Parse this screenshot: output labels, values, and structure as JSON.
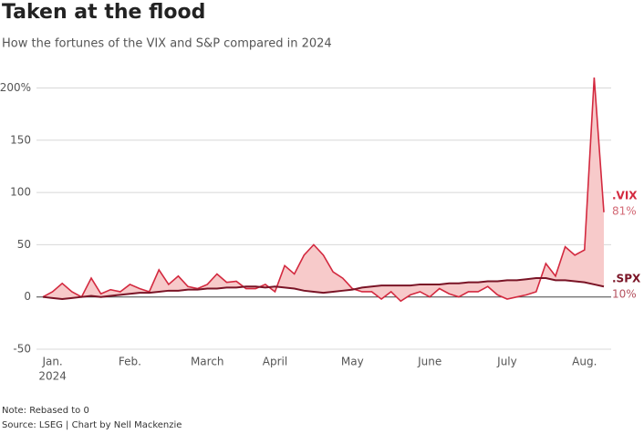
{
  "chart_data": {
    "type": "line",
    "title": "Taken at the flood",
    "subtitle": "How the fortunes of the VIX and S&P compared in 2024",
    "note": "Note: Rebased to 0",
    "source": "Source: LSEG | Chart by Nell Mackenzie",
    "x_year_label": "2024",
    "categories": [
      null,
      "Jan.",
      null,
      null,
      null,
      null,
      null,
      null,
      null,
      "Feb.",
      null,
      null,
      null,
      null,
      null,
      null,
      null,
      "March",
      null,
      null,
      null,
      null,
      null,
      null,
      "April",
      null,
      null,
      null,
      null,
      null,
      null,
      null,
      "May",
      null,
      null,
      null,
      null,
      null,
      null,
      null,
      "June",
      null,
      null,
      null,
      null,
      null,
      null,
      null,
      "July",
      null,
      null,
      null,
      null,
      null,
      null,
      null,
      "Aug.",
      null,
      null
    ],
    "series": [
      {
        "name": ".VIX",
        "color": "#d3293f",
        "end_label": "81%",
        "values": [
          0,
          5,
          13,
          5,
          0,
          18,
          3,
          7,
          5,
          12,
          8,
          5,
          26,
          12,
          20,
          10,
          8,
          12,
          22,
          14,
          15,
          8,
          8,
          12,
          5,
          30,
          22,
          40,
          50,
          40,
          24,
          18,
          8,
          5,
          5,
          -2,
          5,
          -4,
          2,
          5,
          0,
          8,
          3,
          0,
          5,
          5,
          10,
          2,
          -2,
          0,
          2,
          5,
          32,
          20,
          48,
          40,
          45,
          210,
          81
        ]
      },
      {
        "name": ".SPX",
        "color": "#7a1426",
        "end_label": "10%",
        "values": [
          0,
          -1,
          -2,
          -1,
          0,
          1,
          0,
          1,
          2,
          3,
          4,
          4,
          5,
          6,
          6,
          7,
          7,
          8,
          8,
          9,
          9,
          10,
          10,
          9,
          10,
          9,
          8,
          6,
          5,
          4,
          5,
          6,
          7,
          9,
          10,
          11,
          11,
          11,
          11,
          12,
          12,
          12,
          13,
          13,
          14,
          14,
          15,
          15,
          16,
          16,
          17,
          18,
          18,
          16,
          16,
          15,
          14,
          12,
          10
        ]
      }
    ],
    "fill_color": "#f7caca",
    "ylim": [
      -50,
      210
    ],
    "yticks": [
      -50,
      0,
      50,
      100,
      150,
      {
        "value": 200,
        "label": "200%"
      }
    ],
    "grid": true
  }
}
